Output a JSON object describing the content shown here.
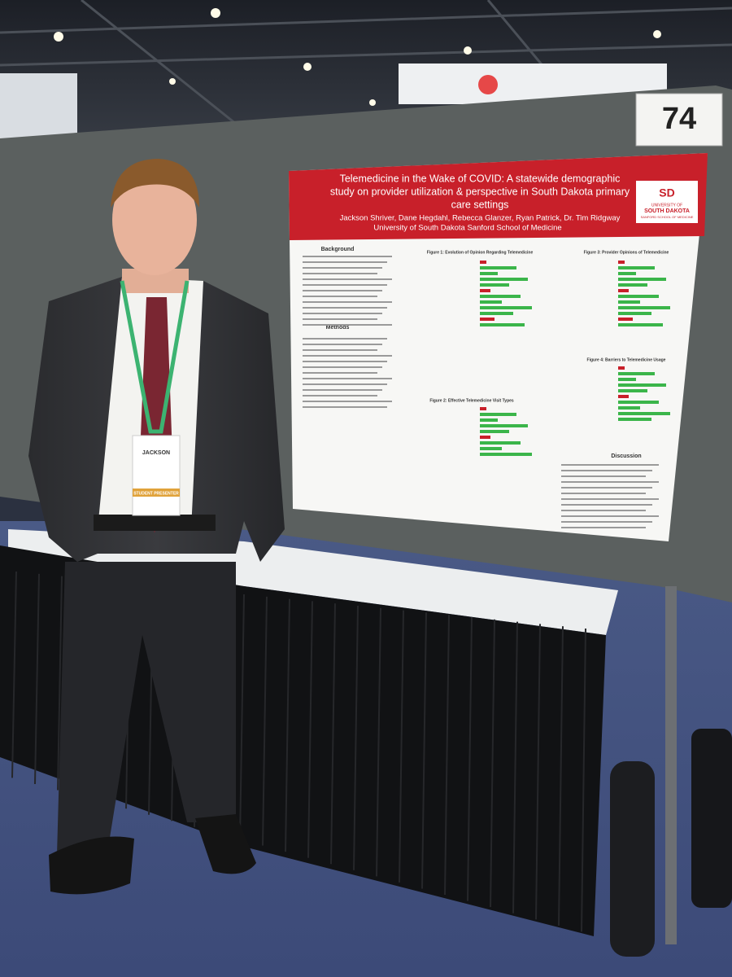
{
  "board_number": "74",
  "poster": {
    "title_lines": [
      "Telemedicine in the Wake of COVID: A statewide demographic",
      "study on provider utilization & perspective in South Dakota primary",
      "care settings"
    ],
    "authors": "Jackson Shriver, Dane Hegdahl, Rebecca Glanzer, Ryan Patrick, Dr. Tim Ridgway",
    "affiliation": "University of South Dakota Sanford School of Medicine",
    "logo": {
      "mark": "SD",
      "line1": "UNIVERSITY OF",
      "line2": "SOUTH DAKOTA",
      "line3": "SANFORD SCHOOL OF MEDICINE"
    },
    "sections": [
      "Background",
      "Methods",
      "Discussion"
    ],
    "figures": [
      "Figure 1: Evolution of Opinion Regarding Telemedicine",
      "Figure 2: Effective Telemedicine Visit Types",
      "Figure 3: Provider Opinions of Telemedicine",
      "Figure 4: Barriers to Telemedicine Usage"
    ]
  },
  "badge": {
    "name": "JACKSON",
    "role": "STUDENT PRESENTER"
  }
}
